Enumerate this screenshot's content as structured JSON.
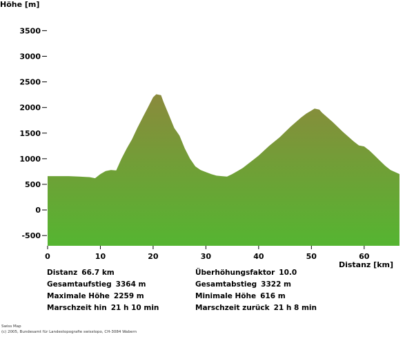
{
  "chart_data": {
    "type": "area",
    "ylabel": "Höhe [m]",
    "xlabel": "Distanz [km]",
    "xlim": [
      0,
      66.7
    ],
    "ylim": [
      -700,
      3600
    ],
    "yticks": [
      3500,
      3000,
      2500,
      2000,
      1500,
      1000,
      500,
      0,
      -500
    ],
    "xticks": [
      0,
      10,
      20,
      30,
      40,
      50,
      60
    ],
    "grid": false,
    "fill_colors": {
      "top": "#8a8a3c",
      "bottom": "#55b531"
    },
    "x": [
      0,
      2,
      4,
      6,
      8,
      9,
      10,
      11,
      12,
      13,
      14,
      15,
      16,
      17,
      18,
      19,
      20,
      20.6,
      21.5,
      22,
      23,
      24,
      25,
      26,
      27,
      28,
      29,
      30,
      31,
      32,
      33,
      34,
      35,
      36,
      37,
      38,
      39,
      40,
      42,
      44,
      46,
      48,
      49,
      50,
      50.6,
      51.5,
      52,
      54,
      56,
      58,
      59,
      60,
      61,
      62,
      63,
      64,
      65,
      66.7
    ],
    "y": [
      660,
      660,
      660,
      650,
      640,
      620,
      700,
      760,
      780,
      770,
      1000,
      1200,
      1380,
      1600,
      1800,
      2000,
      2200,
      2259,
      2240,
      2100,
      1850,
      1600,
      1450,
      1200,
      1000,
      850,
      780,
      740,
      700,
      670,
      660,
      650,
      700,
      760,
      820,
      900,
      980,
      1060,
      1250,
      1420,
      1620,
      1800,
      1880,
      1940,
      1980,
      1960,
      1900,
      1720,
      1520,
      1340,
      1260,
      1240,
      1160,
      1060,
      960,
      860,
      780,
      700
    ]
  },
  "stats": {
    "distanz": {
      "label": "Distanz",
      "value": "66.7 km"
    },
    "gesamtaufstieg": {
      "label": "Gesamtaufstieg",
      "value": "3364 m"
    },
    "maximale_hoehe": {
      "label": "Maximale Höhe",
      "value": "2259 m"
    },
    "marschzeit_hin": {
      "label": "Marschzeit hin",
      "value": "21 h 10 min"
    },
    "ueberhoehungsfaktor": {
      "label": "Überhöhungsfaktor",
      "value": "10.0"
    },
    "gesamtabstieg": {
      "label": "Gesamtabstieg",
      "value": "3322 m"
    },
    "minimale_hoehe": {
      "label": "Minimale Höhe",
      "value": "616 m"
    },
    "marschzeit_zurueck": {
      "label": "Marschzeit zurück",
      "value": "21 h 8 min"
    }
  },
  "footer": {
    "line1": "Swiss Map",
    "line2": "(c) 2005, Bundesamt für Landestopografie swisstopo, CH-3084 Wabern"
  }
}
